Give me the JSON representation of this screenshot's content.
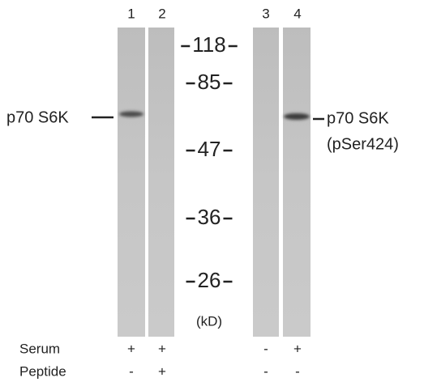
{
  "lanes": [
    "1",
    "2",
    "3",
    "4"
  ],
  "markers": {
    "labels": [
      "118",
      "85",
      "47",
      "36",
      "26"
    ],
    "unit": "(kD)"
  },
  "left_label": "p70 S6K",
  "right_label": [
    "p70 S6K",
    "(pSer424)"
  ],
  "conditions": [
    {
      "name": "Serum",
      "signs": [
        "+",
        "+",
        "-",
        "+"
      ]
    },
    {
      "name": "Peptide",
      "signs": [
        "-",
        "+",
        "-",
        "-"
      ]
    }
  ]
}
